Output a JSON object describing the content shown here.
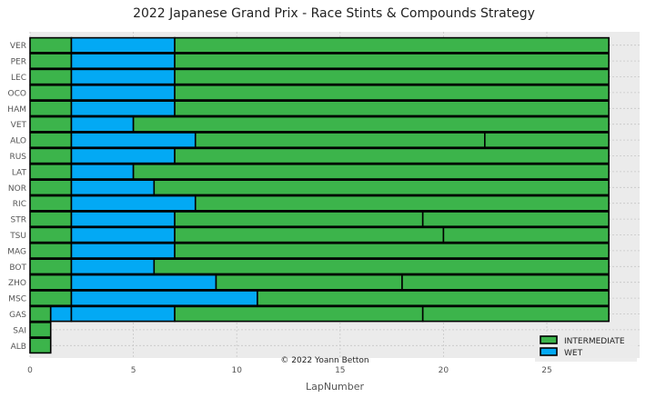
{
  "chart_data": {
    "type": "bar",
    "orientation": "horizontal-stacked",
    "title": "2022 Japanese Grand Prix - Race Stints & Compounds Strategy",
    "xlabel": "LapNumber",
    "ylabel": "",
    "xlim": [
      0,
      29.5
    ],
    "xticks": [
      "0",
      "5",
      "10",
      "15",
      "20",
      "25"
    ],
    "xtick_values": [
      0,
      5,
      10,
      15,
      20,
      25
    ],
    "grid": true,
    "legend_position": "lower-right",
    "annotation": "© 2022 Yoann Betton",
    "compounds": [
      {
        "name": "INTERMEDIATE",
        "color": "#3cb44b"
      },
      {
        "name": "WET",
        "color": "#03a9f4"
      }
    ],
    "drivers": [
      {
        "driver": "VER",
        "stints": [
          {
            "compound": "INTERMEDIATE",
            "start": 0,
            "end": 2
          },
          {
            "compound": "WET",
            "start": 2,
            "end": 7
          },
          {
            "compound": "INTERMEDIATE",
            "start": 7,
            "end": 28
          }
        ]
      },
      {
        "driver": "PER",
        "stints": [
          {
            "compound": "INTERMEDIATE",
            "start": 0,
            "end": 2
          },
          {
            "compound": "WET",
            "start": 2,
            "end": 7
          },
          {
            "compound": "INTERMEDIATE",
            "start": 7,
            "end": 28
          }
        ]
      },
      {
        "driver": "LEC",
        "stints": [
          {
            "compound": "INTERMEDIATE",
            "start": 0,
            "end": 2
          },
          {
            "compound": "WET",
            "start": 2,
            "end": 7
          },
          {
            "compound": "INTERMEDIATE",
            "start": 7,
            "end": 28
          }
        ]
      },
      {
        "driver": "OCO",
        "stints": [
          {
            "compound": "INTERMEDIATE",
            "start": 0,
            "end": 2
          },
          {
            "compound": "WET",
            "start": 2,
            "end": 7
          },
          {
            "compound": "INTERMEDIATE",
            "start": 7,
            "end": 28
          }
        ]
      },
      {
        "driver": "HAM",
        "stints": [
          {
            "compound": "INTERMEDIATE",
            "start": 0,
            "end": 2
          },
          {
            "compound": "WET",
            "start": 2,
            "end": 7
          },
          {
            "compound": "INTERMEDIATE",
            "start": 7,
            "end": 28
          }
        ]
      },
      {
        "driver": "VET",
        "stints": [
          {
            "compound": "INTERMEDIATE",
            "start": 0,
            "end": 2
          },
          {
            "compound": "WET",
            "start": 2,
            "end": 5
          },
          {
            "compound": "INTERMEDIATE",
            "start": 5,
            "end": 28
          }
        ]
      },
      {
        "driver": "ALO",
        "stints": [
          {
            "compound": "INTERMEDIATE",
            "start": 0,
            "end": 2
          },
          {
            "compound": "WET",
            "start": 2,
            "end": 8
          },
          {
            "compound": "INTERMEDIATE",
            "start": 8,
            "end": 22
          },
          {
            "compound": "INTERMEDIATE",
            "start": 22,
            "end": 28
          }
        ]
      },
      {
        "driver": "RUS",
        "stints": [
          {
            "compound": "INTERMEDIATE",
            "start": 0,
            "end": 2
          },
          {
            "compound": "WET",
            "start": 2,
            "end": 7
          },
          {
            "compound": "INTERMEDIATE",
            "start": 7,
            "end": 28
          }
        ]
      },
      {
        "driver": "LAT",
        "stints": [
          {
            "compound": "INTERMEDIATE",
            "start": 0,
            "end": 2
          },
          {
            "compound": "WET",
            "start": 2,
            "end": 5
          },
          {
            "compound": "INTERMEDIATE",
            "start": 5,
            "end": 28
          }
        ]
      },
      {
        "driver": "NOR",
        "stints": [
          {
            "compound": "INTERMEDIATE",
            "start": 0,
            "end": 2
          },
          {
            "compound": "WET",
            "start": 2,
            "end": 6
          },
          {
            "compound": "INTERMEDIATE",
            "start": 6,
            "end": 28
          }
        ]
      },
      {
        "driver": "RIC",
        "stints": [
          {
            "compound": "INTERMEDIATE",
            "start": 0,
            "end": 2
          },
          {
            "compound": "WET",
            "start": 2,
            "end": 8
          },
          {
            "compound": "INTERMEDIATE",
            "start": 8,
            "end": 28
          }
        ]
      },
      {
        "driver": "STR",
        "stints": [
          {
            "compound": "INTERMEDIATE",
            "start": 0,
            "end": 2
          },
          {
            "compound": "WET",
            "start": 2,
            "end": 7
          },
          {
            "compound": "INTERMEDIATE",
            "start": 7,
            "end": 19
          },
          {
            "compound": "INTERMEDIATE",
            "start": 19,
            "end": 28
          }
        ]
      },
      {
        "driver": "TSU",
        "stints": [
          {
            "compound": "INTERMEDIATE",
            "start": 0,
            "end": 2
          },
          {
            "compound": "WET",
            "start": 2,
            "end": 7
          },
          {
            "compound": "INTERMEDIATE",
            "start": 7,
            "end": 20
          },
          {
            "compound": "INTERMEDIATE",
            "start": 20,
            "end": 28
          }
        ]
      },
      {
        "driver": "MAG",
        "stints": [
          {
            "compound": "INTERMEDIATE",
            "start": 0,
            "end": 2
          },
          {
            "compound": "WET",
            "start": 2,
            "end": 7
          },
          {
            "compound": "INTERMEDIATE",
            "start": 7,
            "end": 28
          }
        ]
      },
      {
        "driver": "BOT",
        "stints": [
          {
            "compound": "INTERMEDIATE",
            "start": 0,
            "end": 2
          },
          {
            "compound": "WET",
            "start": 2,
            "end": 6
          },
          {
            "compound": "INTERMEDIATE",
            "start": 6,
            "end": 28
          }
        ]
      },
      {
        "driver": "ZHO",
        "stints": [
          {
            "compound": "INTERMEDIATE",
            "start": 0,
            "end": 2
          },
          {
            "compound": "WET",
            "start": 2,
            "end": 9
          },
          {
            "compound": "INTERMEDIATE",
            "start": 9,
            "end": 18
          },
          {
            "compound": "INTERMEDIATE",
            "start": 18,
            "end": 28
          }
        ]
      },
      {
        "driver": "MSC",
        "stints": [
          {
            "compound": "INTERMEDIATE",
            "start": 0,
            "end": 2
          },
          {
            "compound": "WET",
            "start": 2,
            "end": 11
          },
          {
            "compound": "INTERMEDIATE",
            "start": 11,
            "end": 28
          }
        ]
      },
      {
        "driver": "GAS",
        "stints": [
          {
            "compound": "INTERMEDIATE",
            "start": 0,
            "end": 1
          },
          {
            "compound": "WET",
            "start": 1,
            "end": 2
          },
          {
            "compound": "WET",
            "start": 2,
            "end": 7
          },
          {
            "compound": "INTERMEDIATE",
            "start": 7,
            "end": 19
          },
          {
            "compound": "INTERMEDIATE",
            "start": 19,
            "end": 28
          }
        ]
      },
      {
        "driver": "SAI",
        "stints": [
          {
            "compound": "INTERMEDIATE",
            "start": 0,
            "end": 1
          }
        ]
      },
      {
        "driver": "ALB",
        "stints": [
          {
            "compound": "INTERMEDIATE",
            "start": 0,
            "end": 1
          }
        ]
      }
    ]
  }
}
